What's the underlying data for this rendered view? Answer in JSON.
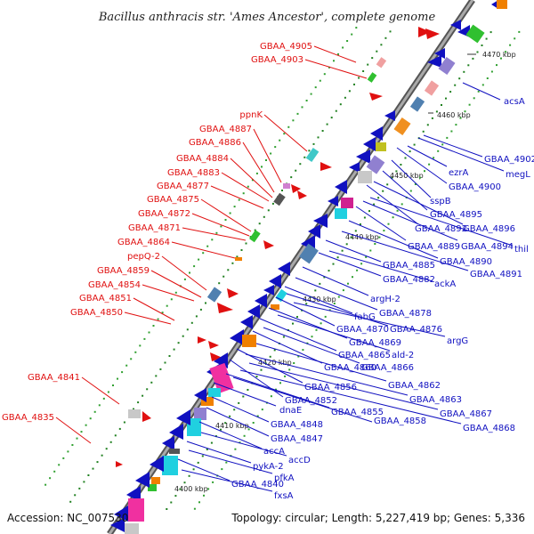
{
  "title": "Bacillus anthracis str. 'Ames Ancestor', complete genome",
  "accession": "Accession: NC_007530",
  "topology": "Topology: circular; Length: 5,227,419 bp; Genes: 5,336",
  "scale_labels": [
    "4470 kbp",
    "4460 kbp",
    "4450 kbp",
    "4440 kbp",
    "4430 kbp",
    "4420 kbp",
    "4410 kbp",
    "4400 kbp"
  ],
  "left_labels": [
    "GBAA_4905",
    "GBAA_4903",
    "ppnK",
    "GBAA_4887",
    "GBAA_4886",
    "GBAA_4884",
    "GBAA_4883",
    "GBAA_4877",
    "GBAA_4875",
    "GBAA_4872",
    "GBAA_4871",
    "GBAA_4864",
    "pepQ-2",
    "GBAA_4859",
    "GBAA_4854",
    "GBAA_4851",
    "GBAA_4850",
    "GBAA_4841",
    "GBAA_4835"
  ],
  "right_labels": [
    "acsA",
    "GBAA_4902",
    "megL",
    "ezrA",
    "GBAA_4900",
    "sspB",
    "GBAA_4895",
    "GBAA_4892",
    "GBAA_4896",
    "GBAA_4889",
    "GBAA_4894",
    "thil",
    "GBAA_4890",
    "GBAA_4885",
    "GBAA_4891",
    "GBAA_4882",
    "ackA",
    "argH-2",
    "GBAA_4878",
    "fabG",
    "GBAA_4870",
    "GBAA_4876",
    "GBAA_4869",
    "argG",
    "GBAA_4865",
    "ald-2",
    "GBAA_4860",
    "GBAA_4866",
    "GBAA_4856",
    "GBAA_4862",
    "GBAA_4852",
    "GBAA_4863",
    "GBAA_4855",
    "GBAA_4867",
    "dnaE",
    "GBAA_4858",
    "GBAA_4868",
    "GBAA_4848",
    "GBAA_4847",
    "accA",
    "accD",
    "pykA-2",
    "pfkA",
    "GBAA_4840",
    "fxsA"
  ]
}
